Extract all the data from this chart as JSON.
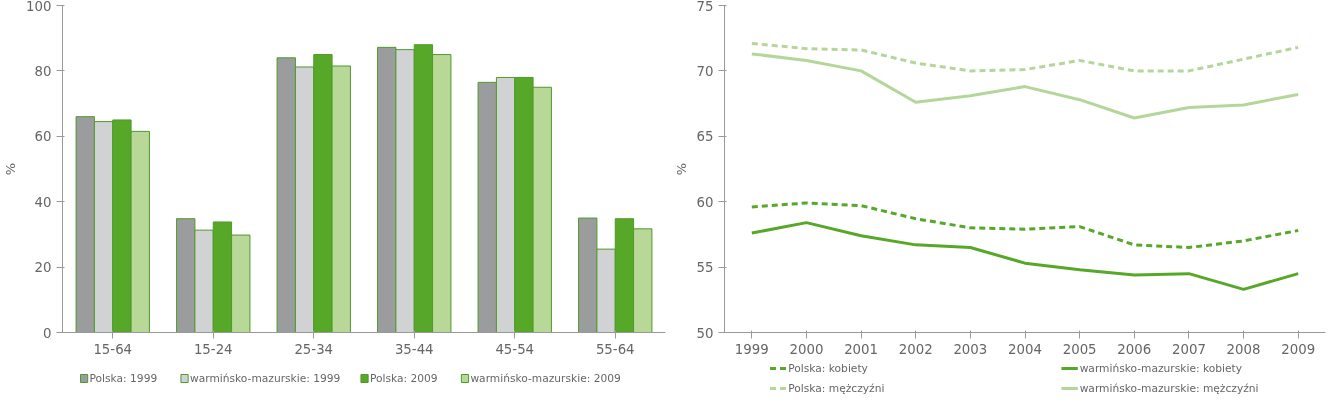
{
  "chart_data": [
    {
      "type": "bar",
      "ylabel": "%",
      "categories": [
        "15-64",
        "15-24",
        "25-34",
        "35-44",
        "45-54",
        "55-64"
      ],
      "ylim": [
        0,
        100
      ],
      "yticks": [
        0,
        20,
        40,
        60,
        80,
        100
      ],
      "grid": false,
      "legend": "bottom",
      "series": [
        {
          "name": "Polska: 1999",
          "color": "#9b9c9e",
          "values": [
            66,
            34.8,
            84,
            87.2,
            76.5,
            35
          ]
        },
        {
          "name": "warmińsko-mazurskie: 1999",
          "color": "#d1d2d4",
          "values": [
            64.5,
            31.3,
            81.2,
            86.5,
            78,
            25.5
          ]
        },
        {
          "name": "Polska: 2009",
          "color": "#57a828",
          "values": [
            65,
            33.8,
            85,
            88,
            78,
            34.8
          ]
        },
        {
          "name": "warmińsko-mazurskie: 2009",
          "color": "#b8d898",
          "values": [
            61.5,
            29.8,
            81.5,
            85,
            75,
            31.7
          ]
        }
      ]
    },
    {
      "type": "line",
      "ylabel": "%",
      "x": [
        1999,
        2000,
        2001,
        2002,
        2003,
        2004,
        2005,
        2006,
        2007,
        2008,
        2009
      ],
      "xlim": [
        1998.5,
        2009.5
      ],
      "xticks": [
        1999,
        2000,
        2001,
        2002,
        2003,
        2004,
        2005,
        2006,
        2007,
        2008,
        2009
      ],
      "ylim": [
        50,
        75
      ],
      "yticks": [
        50,
        55,
        60,
        65,
        70,
        75
      ],
      "grid": false,
      "legend": "bottom",
      "marker": "none",
      "series": [
        {
          "name": "Polska: kobiety",
          "color": "#57a828",
          "line_style": "dashed",
          "values": [
            59.6,
            59.9,
            59.7,
            58.7,
            58.0,
            57.9,
            58.1,
            56.7,
            56.5,
            57.0,
            57.8
          ]
        },
        {
          "name": "warmińsko-mazurskie: kobiety",
          "color": "#57a828",
          "line_style": "solid",
          "values": [
            57.6,
            58.4,
            57.4,
            56.7,
            56.5,
            55.3,
            54.8,
            54.4,
            54.5,
            53.3,
            54.5
          ]
        },
        {
          "name": "Polska: mężczyźni",
          "color": "#b5d69a",
          "line_style": "dashed",
          "values": [
            72.1,
            71.7,
            71.6,
            70.6,
            70.0,
            70.1,
            70.8,
            70.0,
            70.0,
            70.9,
            71.8
          ]
        },
        {
          "name": "warmińsko-mazurskie: mężczyźni",
          "color": "#b5d69a",
          "line_style": "solid",
          "values": [
            71.3,
            70.8,
            70.0,
            67.6,
            68.1,
            68.8,
            67.8,
            66.4,
            67.2,
            67.4,
            68.2
          ]
        }
      ]
    }
  ]
}
